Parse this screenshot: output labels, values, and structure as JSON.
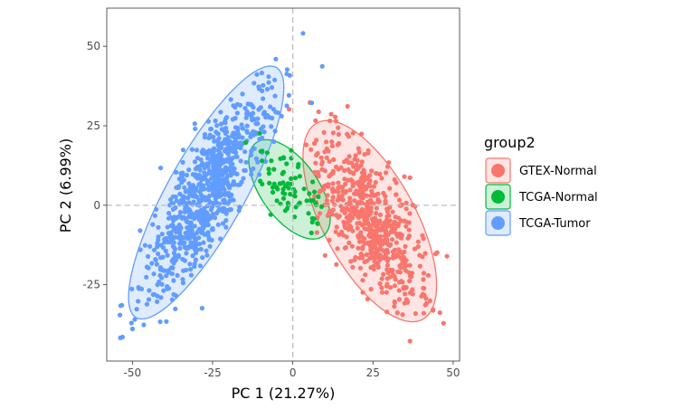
{
  "chart_data": {
    "type": "scatter",
    "title": "",
    "xlabel": "PC 1 (21.27%)",
    "ylabel": "PC 2 (6.99%)",
    "xlim": [
      -58,
      52
    ],
    "ylim": [
      -49,
      62
    ],
    "xticks": [
      -50,
      -25,
      0,
      25,
      50
    ],
    "yticks": [
      -25,
      0,
      25,
      50
    ],
    "xtick_labels": [
      "-50",
      "-25",
      "0",
      "25",
      "50"
    ],
    "ytick_labels": [
      "-25",
      "0",
      "25",
      "50"
    ],
    "reference_lines": {
      "x": 0,
      "y": 0,
      "style": "dashed",
      "color": "#bdbdbd"
    },
    "grid": false,
    "legend": {
      "title": "group2",
      "placement": "right"
    },
    "series": [
      {
        "name": "GTEX-Normal",
        "color": "#F8766D",
        "n_points": 620,
        "centroid": [
          24,
          -5
        ],
        "ellipse": {
          "center": [
            24,
            -5
          ],
          "semi_major": 35,
          "semi_minor": 14.5,
          "angle_deg": -62
        }
      },
      {
        "name": "TCGA-Normal",
        "color": "#00BA38",
        "n_points": 75,
        "centroid": [
          -1,
          5
        ],
        "ellipse": {
          "center": [
            -1,
            5
          ],
          "semi_major": 18,
          "semi_minor": 9,
          "angle_deg": -55
        }
      },
      {
        "name": "TCGA-Tumor",
        "color": "#619CFF",
        "n_points": 820,
        "centroid": [
          -27,
          4
        ],
        "ellipse": {
          "center": [
            -27,
            4
          ],
          "semi_major": 45,
          "semi_minor": 12,
          "angle_deg": 61
        }
      }
    ]
  }
}
